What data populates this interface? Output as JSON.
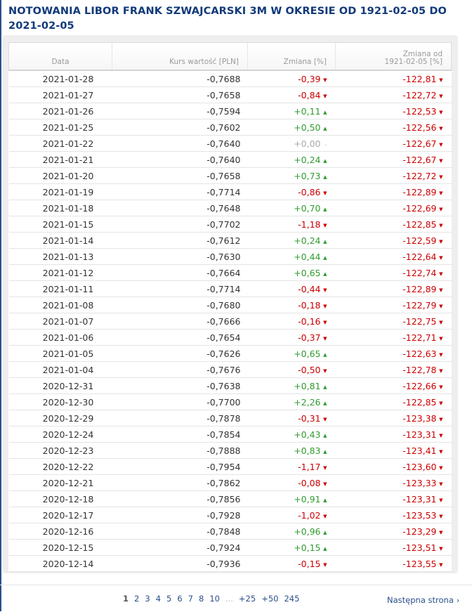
{
  "title": "NOTOWANIA LIBOR FRANK SZWAJCARSKI 3M W OKRESIE OD 1921-02-05 DO 2021-02-05",
  "headers": {
    "date": "Data",
    "rate": "Kurs wartość [PLN]",
    "change": "Zmiana [%]",
    "change_since_line1": "Zmiana od",
    "change_since_line2": "1921-02-05 [%]"
  },
  "arrows": {
    "down": "▼",
    "up": "▲",
    "flat": "–"
  },
  "rows": [
    {
      "date": "2021-01-28",
      "rate": "-0,7688",
      "change": "-0,39",
      "dir": "down",
      "since": "-122,81"
    },
    {
      "date": "2021-01-27",
      "rate": "-0,7658",
      "change": "-0,84",
      "dir": "down",
      "since": "-122,72"
    },
    {
      "date": "2021-01-26",
      "rate": "-0,7594",
      "change": "+0,11",
      "dir": "up",
      "since": "-122,53"
    },
    {
      "date": "2021-01-25",
      "rate": "-0,7602",
      "change": "+0,50",
      "dir": "up",
      "since": "-122,56"
    },
    {
      "date": "2021-01-22",
      "rate": "-0,7640",
      "change": "+0,00",
      "dir": "flat",
      "since": "-122,67"
    },
    {
      "date": "2021-01-21",
      "rate": "-0,7640",
      "change": "+0,24",
      "dir": "up",
      "since": "-122,67"
    },
    {
      "date": "2021-01-20",
      "rate": "-0,7658",
      "change": "+0,73",
      "dir": "up",
      "since": "-122,72"
    },
    {
      "date": "2021-01-19",
      "rate": "-0,7714",
      "change": "-0,86",
      "dir": "down",
      "since": "-122,89"
    },
    {
      "date": "2021-01-18",
      "rate": "-0,7648",
      "change": "+0,70",
      "dir": "up",
      "since": "-122,69"
    },
    {
      "date": "2021-01-15",
      "rate": "-0,7702",
      "change": "-1,18",
      "dir": "down",
      "since": "-122,85"
    },
    {
      "date": "2021-01-14",
      "rate": "-0,7612",
      "change": "+0,24",
      "dir": "up",
      "since": "-122,59"
    },
    {
      "date": "2021-01-13",
      "rate": "-0,7630",
      "change": "+0,44",
      "dir": "up",
      "since": "-122,64"
    },
    {
      "date": "2021-01-12",
      "rate": "-0,7664",
      "change": "+0,65",
      "dir": "up",
      "since": "-122,74"
    },
    {
      "date": "2021-01-11",
      "rate": "-0,7714",
      "change": "-0,44",
      "dir": "down",
      "since": "-122,89"
    },
    {
      "date": "2021-01-08",
      "rate": "-0,7680",
      "change": "-0,18",
      "dir": "down",
      "since": "-122,79"
    },
    {
      "date": "2021-01-07",
      "rate": "-0,7666",
      "change": "-0,16",
      "dir": "down",
      "since": "-122,75"
    },
    {
      "date": "2021-01-06",
      "rate": "-0,7654",
      "change": "-0,37",
      "dir": "down",
      "since": "-122,71"
    },
    {
      "date": "2021-01-05",
      "rate": "-0,7626",
      "change": "+0,65",
      "dir": "up",
      "since": "-122,63"
    },
    {
      "date": "2021-01-04",
      "rate": "-0,7676",
      "change": "-0,50",
      "dir": "down",
      "since": "-122,78"
    },
    {
      "date": "2020-12-31",
      "rate": "-0,7638",
      "change": "+0,81",
      "dir": "up",
      "since": "-122,66"
    },
    {
      "date": "2020-12-30",
      "rate": "-0,7700",
      "change": "+2,26",
      "dir": "up",
      "since": "-122,85"
    },
    {
      "date": "2020-12-29",
      "rate": "-0,7878",
      "change": "-0,31",
      "dir": "down",
      "since": "-123,38"
    },
    {
      "date": "2020-12-24",
      "rate": "-0,7854",
      "change": "+0,43",
      "dir": "up",
      "since": "-123,31"
    },
    {
      "date": "2020-12-23",
      "rate": "-0,7888",
      "change": "+0,83",
      "dir": "up",
      "since": "-123,41"
    },
    {
      "date": "2020-12-22",
      "rate": "-0,7954",
      "change": "-1,17",
      "dir": "down",
      "since": "-123,60"
    },
    {
      "date": "2020-12-21",
      "rate": "-0,7862",
      "change": "-0,08",
      "dir": "down",
      "since": "-123,33"
    },
    {
      "date": "2020-12-18",
      "rate": "-0,7856",
      "change": "+0,91",
      "dir": "up",
      "since": "-123,31"
    },
    {
      "date": "2020-12-17",
      "rate": "-0,7928",
      "change": "-1,02",
      "dir": "down",
      "since": "-123,53"
    },
    {
      "date": "2020-12-16",
      "rate": "-0,7848",
      "change": "+0,96",
      "dir": "up",
      "since": "-123,29"
    },
    {
      "date": "2020-12-15",
      "rate": "-0,7924",
      "change": "+0,15",
      "dir": "up",
      "since": "-123,51"
    },
    {
      "date": "2020-12-14",
      "rate": "-0,7936",
      "change": "-0,15",
      "dir": "down",
      "since": "-123,55"
    }
  ],
  "colors": {
    "title": "#123a7a",
    "negative": "#cc0000",
    "positive": "#2f9b2f",
    "neutral": "#aaaaaa",
    "link": "#2b4f8a"
  },
  "pagination": {
    "pages": [
      {
        "label": "1",
        "current": true
      },
      {
        "label": "2"
      },
      {
        "label": "3"
      },
      {
        "label": "4"
      },
      {
        "label": "5"
      },
      {
        "label": "6"
      },
      {
        "label": "7"
      },
      {
        "label": "8"
      },
      {
        "label": "10"
      },
      {
        "label": "...",
        "dots": true
      },
      {
        "label": "+25"
      },
      {
        "label": "+50"
      },
      {
        "label": "245"
      }
    ],
    "next_label": "Następna strona",
    "next_icon": "chevron-right-icon"
  }
}
